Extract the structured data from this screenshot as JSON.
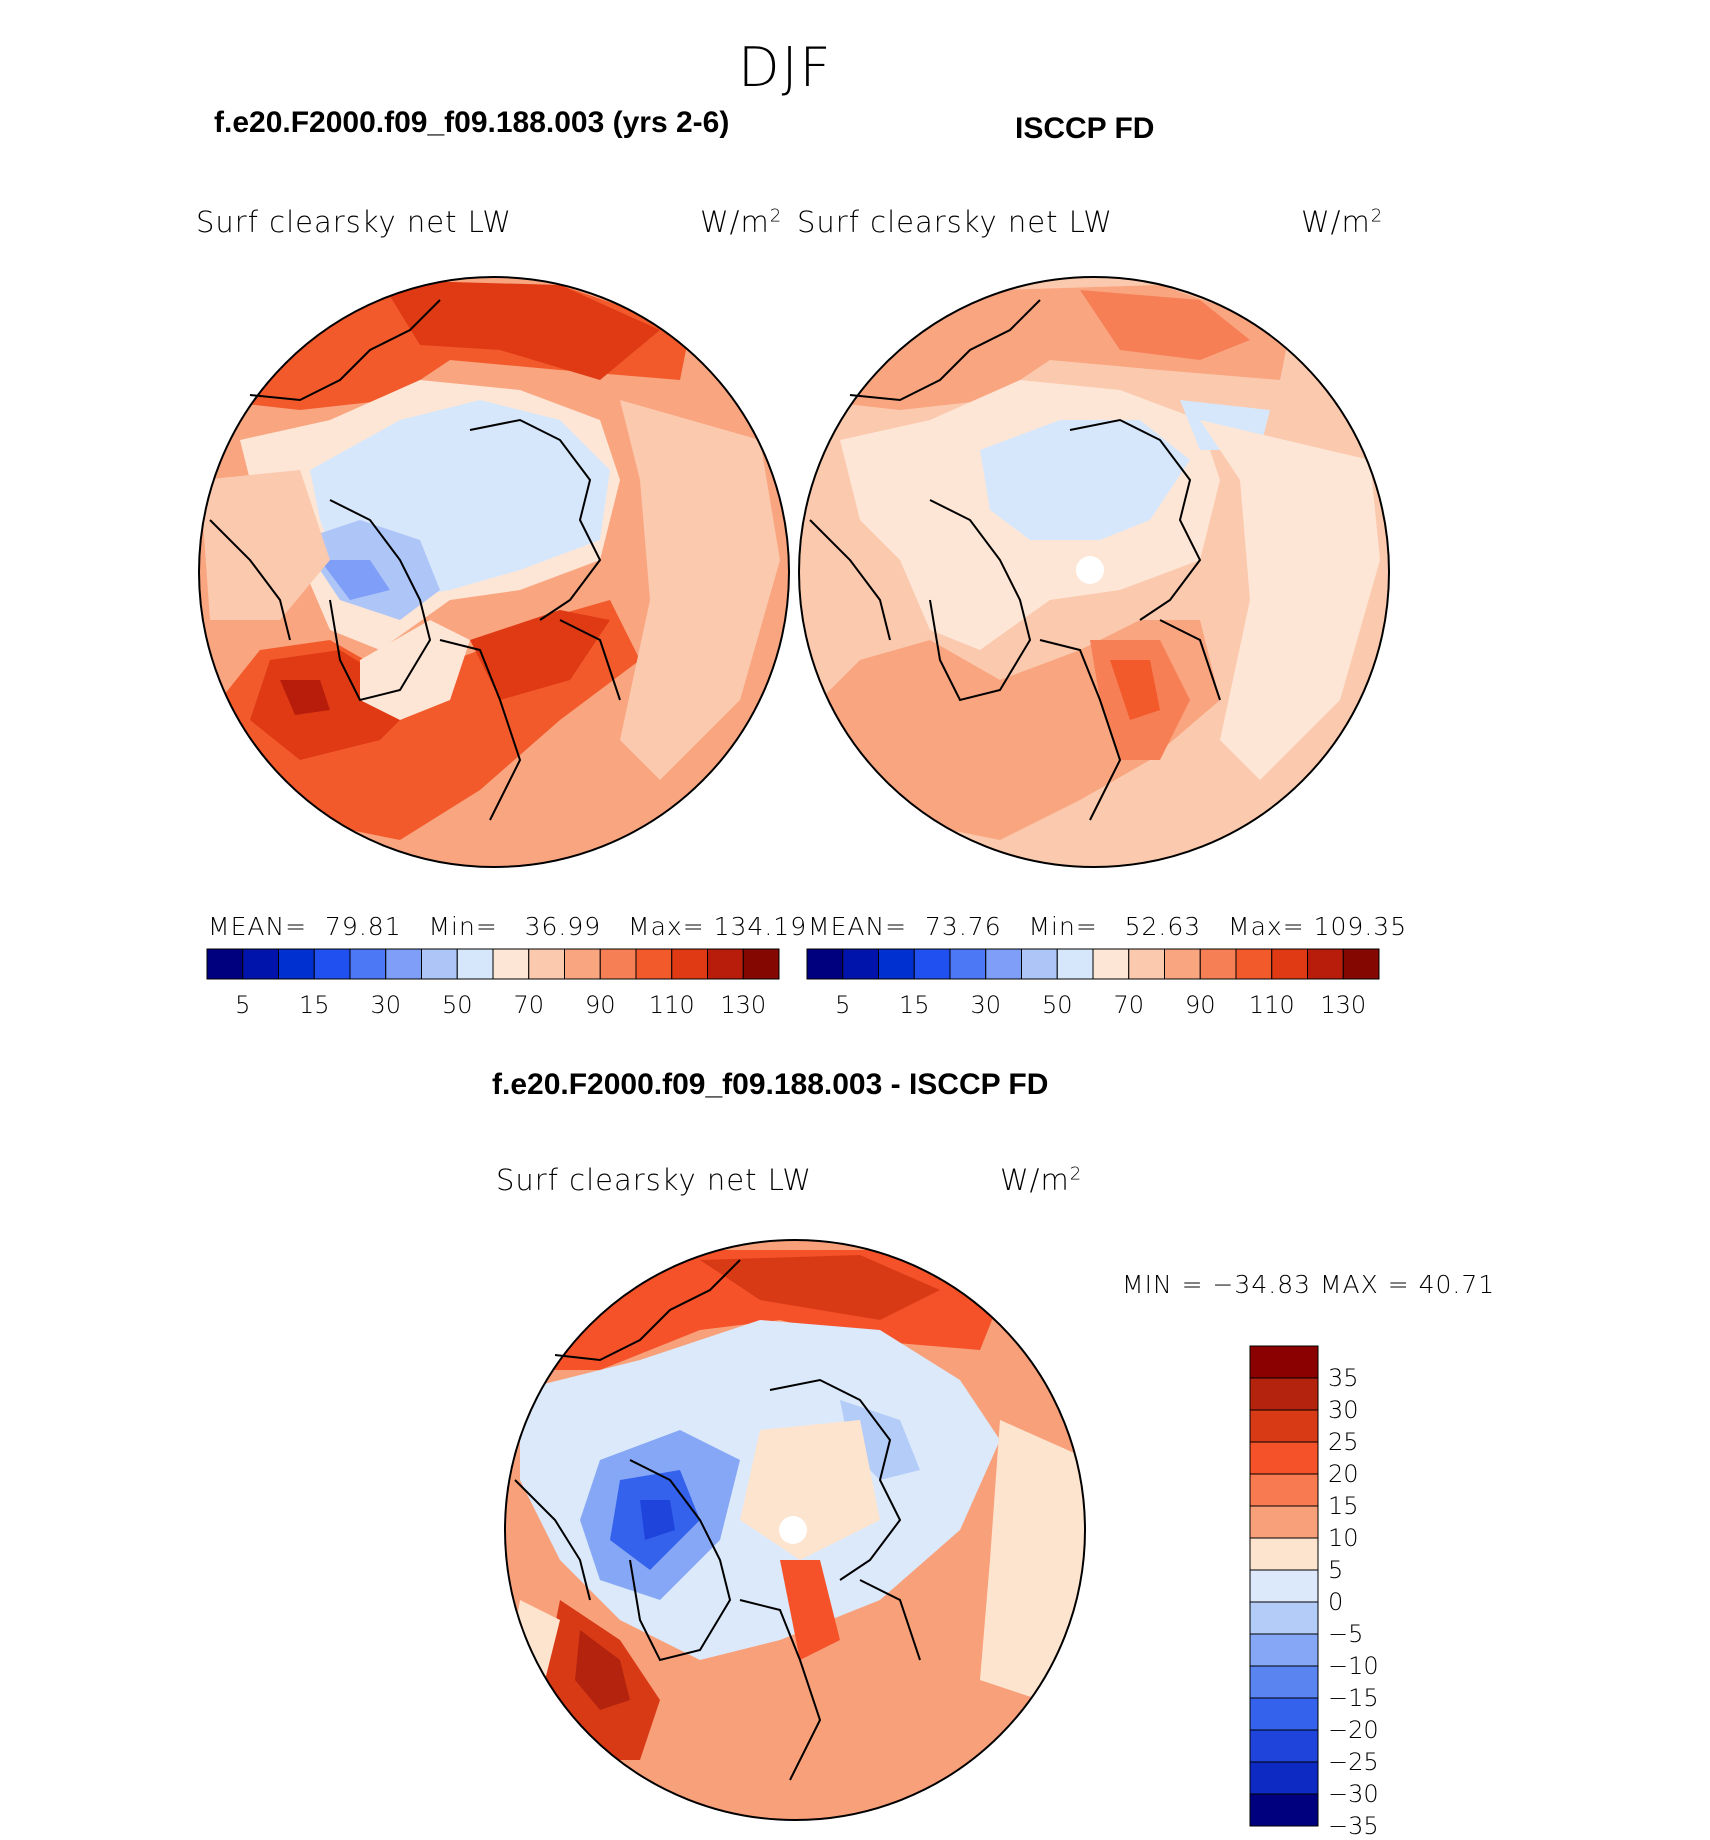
{
  "season": "DJF",
  "panels": [
    {
      "title": "f.e20.F2000.f09_f09.188.003 (yrs 2-6)",
      "var_label": "Surf clearsky net LW",
      "units": "W/m",
      "units_sup": "2",
      "stats": {
        "mean_label": "MEAN=",
        "mean": "79.81",
        "min_label": "Min=",
        "min": "36.99",
        "max_label": "Max=",
        "max": "134.19"
      }
    },
    {
      "title": "ISCCP FD",
      "var_label": "Surf clearsky net LW",
      "units": "W/m",
      "units_sup": "2",
      "stats": {
        "mean_label": "MEAN=",
        "mean": "73.76",
        "min_label": "Min=",
        "min": "52.63",
        "max_label": "Max=",
        "max": "109.35"
      }
    },
    {
      "title": "f.e20.F2000.f09_f09.188.003 - ISCCP FD",
      "var_label": "Surf clearsky net LW",
      "units": "W/m",
      "units_sup": "2",
      "minmax": "MIN = −34.83 MAX =   40.71"
    }
  ],
  "chart_data": {
    "type": "heatmap",
    "projection": "north polar stereographic",
    "field_colorbar": {
      "colors": [
        "#00007f",
        "#0014ac",
        "#0030d0",
        "#2050f0",
        "#4d78f5",
        "#7e9ef7",
        "#aec5f8",
        "#d7e7fb",
        "#fde6d6",
        "#fbc9ad",
        "#f9a580",
        "#f67f55",
        "#f25a2b",
        "#df3a14",
        "#b81d0c",
        "#850702"
      ],
      "tick_labels": [
        "5",
        "15",
        "30",
        "50",
        "70",
        "90",
        "110",
        "130"
      ]
    },
    "diff_colorbar": {
      "colors": [
        "#8b0000",
        "#b3230d",
        "#d93a16",
        "#f5522a",
        "#f77a50",
        "#f8a07a",
        "#fde4cf",
        "#dbe9fa",
        "#b3cdf8",
        "#86a7f5",
        "#5a84f0",
        "#3462ec",
        "#1e44dc",
        "#0d2ac2",
        "#00007f"
      ],
      "tick_labels": [
        "35",
        "30",
        "25",
        "20",
        "15",
        "10",
        "5",
        "0",
        "−5",
        "−10",
        "−15",
        "−20",
        "−25",
        "−30",
        "−35"
      ]
    }
  }
}
